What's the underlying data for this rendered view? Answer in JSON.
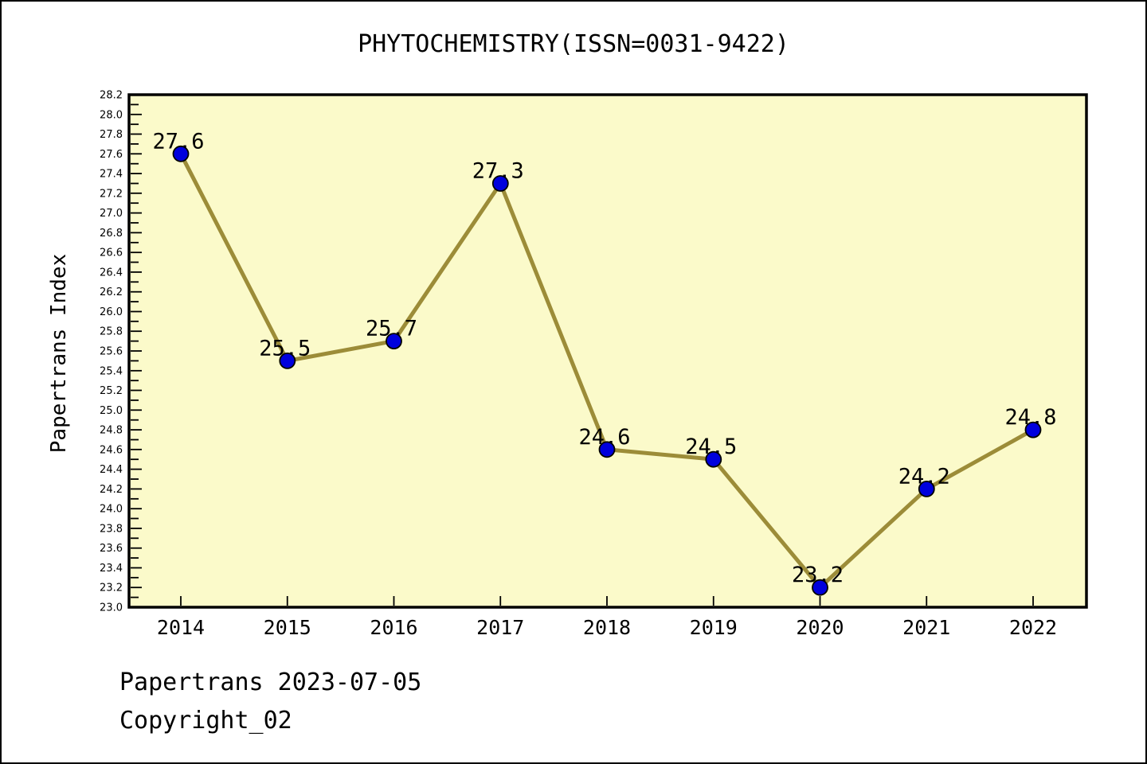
{
  "title": "PHYTOCHEMISTRY(ISSN=0031-9422)",
  "footer": {
    "line1": "Papertrans 2023-07-05",
    "line2": "Copyright_02"
  },
  "chart_data": {
    "type": "line",
    "title": "PHYTOCHEMISTRY(ISSN=0031-9422)",
    "categories": [
      "2014",
      "2015",
      "2016",
      "2017",
      "2018",
      "2019",
      "2020",
      "2021",
      "2022"
    ],
    "values": [
      27.6,
      25.5,
      25.7,
      27.3,
      24.6,
      24.5,
      23.2,
      24.2,
      24.8
    ],
    "xlabel": "",
    "ylabel": "Papertrans Index",
    "ylim": [
      23.0,
      28.2
    ],
    "ytick_major": 0.2,
    "ytick_minor": 0.1,
    "value_label_decimals": 1,
    "grid": false,
    "legend": false,
    "colors": {
      "page_bg": "#FFFFFF",
      "plot_bg": "#FBFACA",
      "line": "#9C8C38",
      "marker": "#0000DD",
      "marker_edge": "#000000",
      "axis": "#000000",
      "text": "#000000"
    }
  }
}
